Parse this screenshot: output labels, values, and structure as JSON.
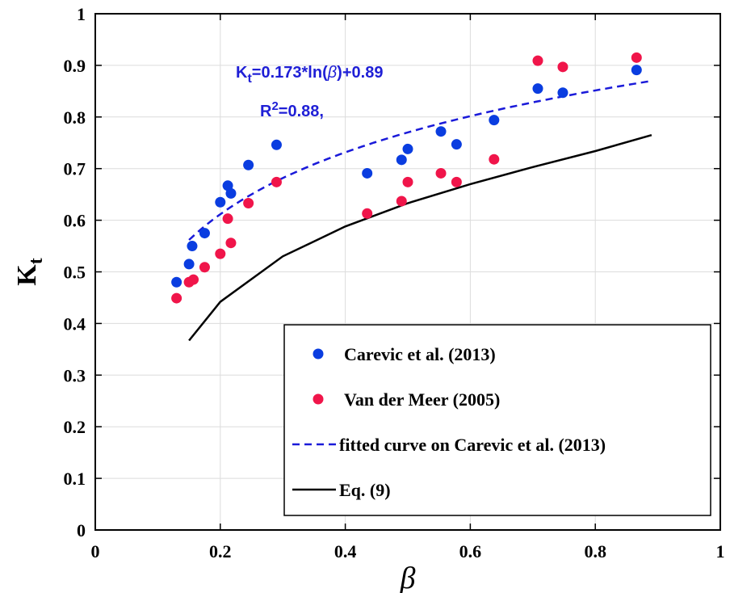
{
  "chart_data": {
    "type": "scatter",
    "title": "",
    "xlabel": "β",
    "ylabel": "K",
    "ylabel_sub": "t",
    "xlim": [
      0,
      1
    ],
    "ylim": [
      0,
      1
    ],
    "x_ticks": [
      "0",
      "0.2",
      "0.4",
      "0.6",
      "0.8",
      "1"
    ],
    "y_ticks": [
      "0",
      "0.1",
      "0.2",
      "0.3",
      "0.4",
      "0.5",
      "0.6",
      "0.7",
      "0.8",
      "0.9",
      "1"
    ],
    "grid": true,
    "legend_position": "bottom-right",
    "series": [
      {
        "name": "Carevic et al. (2013)",
        "kind": "scatter",
        "color": "#0a3de0",
        "points": [
          [
            0.13,
            0.48
          ],
          [
            0.15,
            0.515
          ],
          [
            0.155,
            0.55
          ],
          [
            0.175,
            0.575
          ],
          [
            0.2,
            0.635
          ],
          [
            0.212,
            0.667
          ],
          [
            0.217,
            0.652
          ],
          [
            0.245,
            0.707
          ],
          [
            0.29,
            0.746
          ],
          [
            0.435,
            0.691
          ],
          [
            0.49,
            0.717
          ],
          [
            0.5,
            0.738
          ],
          [
            0.553,
            0.772
          ],
          [
            0.578,
            0.747
          ],
          [
            0.638,
            0.794
          ],
          [
            0.708,
            0.855
          ],
          [
            0.748,
            0.847
          ],
          [
            0.866,
            0.891
          ]
        ]
      },
      {
        "name": "Van der Meer (2005)",
        "kind": "scatter",
        "color": "#f0154a",
        "points": [
          [
            0.13,
            0.449
          ],
          [
            0.15,
            0.48
          ],
          [
            0.157,
            0.485
          ],
          [
            0.175,
            0.509
          ],
          [
            0.2,
            0.535
          ],
          [
            0.212,
            0.603
          ],
          [
            0.217,
            0.556
          ],
          [
            0.245,
            0.633
          ],
          [
            0.29,
            0.674
          ],
          [
            0.435,
            0.613
          ],
          [
            0.49,
            0.637
          ],
          [
            0.5,
            0.674
          ],
          [
            0.553,
            0.691
          ],
          [
            0.578,
            0.674
          ],
          [
            0.638,
            0.718
          ],
          [
            0.708,
            0.909
          ],
          [
            0.748,
            0.897
          ],
          [
            0.866,
            0.915
          ]
        ]
      },
      {
        "name": "fitted curve on Carevic et al. (2013)",
        "kind": "line",
        "style": "dashed",
        "color": "#1a1ad9",
        "equation": "0.173*ln(x)+0.89",
        "x_range": [
          0.15,
          0.89
        ]
      },
      {
        "name": "Eq. (9)",
        "kind": "line",
        "style": "solid",
        "color": "#000000",
        "x": [
          0.15,
          0.2,
          0.3,
          0.4,
          0.5,
          0.6,
          0.7,
          0.8,
          0.89
        ],
        "y": [
          0.367,
          0.442,
          0.53,
          0.588,
          0.633,
          0.67,
          0.703,
          0.734,
          0.765
        ]
      }
    ],
    "annotations": {
      "eq_prefix": "K",
      "eq_sub": "t",
      "eq_mid": "=0.173*ln(",
      "eq_beta": "β",
      "eq_end": ")+0.89",
      "r2_prefix": "R",
      "r2_sup": "2",
      "r2_end": "=0.88,"
    }
  }
}
